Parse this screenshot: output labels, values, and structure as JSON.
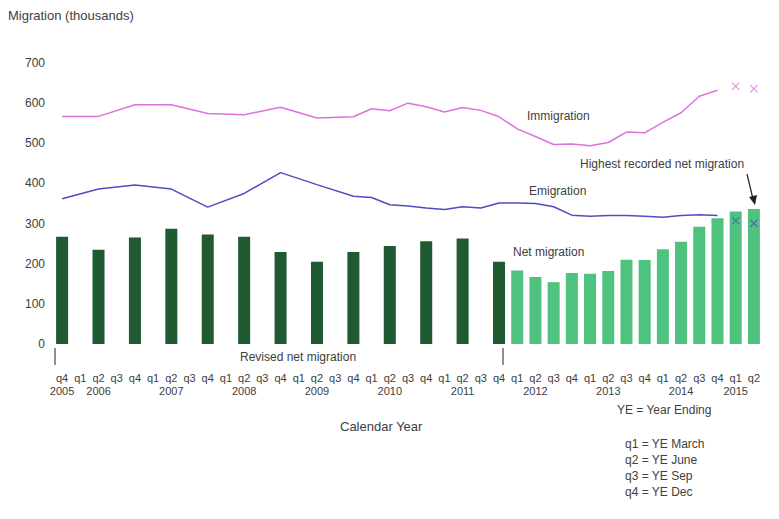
{
  "chart_data": {
    "type": "bar",
    "y_label": "Migration (thousands)",
    "x_label": "Calendar Year",
    "categories": [
      "q4\n2005",
      "q1",
      "q2\n2006",
      "q3",
      "q4",
      "q1",
      "q2\n2007",
      "q3",
      "q4",
      "q1",
      "q2\n2008",
      "q3",
      "q4",
      "q1",
      "q2\n2009",
      "q3",
      "q4",
      "q1",
      "q2\n2010",
      "q3",
      "q4",
      "q1",
      "q2\n2011",
      "q3",
      "q4",
      "q1",
      "q2\n2012",
      "q3",
      "q4",
      "q1",
      "q2\n2013",
      "q3",
      "q4",
      "q1",
      "q2\n2014",
      "q3",
      "q4",
      "q1\n2015",
      "q2"
    ],
    "ylim": [
      0,
      700
    ],
    "yticks": [
      0,
      100,
      200,
      300,
      400,
      500,
      600,
      700
    ],
    "grid": false,
    "series": [
      {
        "name": "Revised net migration",
        "type": "bar",
        "color": "#1f5a33",
        "values": [
          267,
          null,
          235,
          null,
          265,
          null,
          287,
          null,
          273,
          null,
          267,
          null,
          229,
          null,
          205,
          null,
          229,
          null,
          244,
          null,
          256,
          null,
          263,
          null,
          205,
          null,
          null,
          null,
          null,
          null,
          null,
          null,
          null,
          null,
          null,
          null,
          null,
          null,
          null
        ]
      },
      {
        "name": "Net migration",
        "type": "bar",
        "color": "#4ec27e",
        "values": [
          null,
          null,
          null,
          null,
          null,
          null,
          null,
          null,
          null,
          null,
          null,
          null,
          null,
          null,
          null,
          null,
          null,
          null,
          null,
          null,
          null,
          null,
          null,
          null,
          null,
          183,
          167,
          154,
          177,
          175,
          182,
          210,
          209,
          236,
          255,
          292,
          313,
          330,
          336
        ]
      },
      {
        "name": "Immigration",
        "type": "line",
        "color": "#dd72dd",
        "line_style": "solid",
        "values": [
          567,
          null,
          567,
          null,
          596,
          null,
          596,
          null,
          574,
          null,
          571,
          null,
          590,
          null,
          563,
          null,
          566,
          586,
          581,
          600,
          591,
          578,
          589,
          582,
          566,
          536,
          517,
          497,
          498,
          494,
          502,
          528,
          526,
          552,
          576,
          617,
          632,
          null,
          null
        ]
      },
      {
        "name": "Emigration",
        "type": "line",
        "color": "#4d4dc4",
        "line_style": "solid",
        "values": [
          362,
          null,
          386,
          null,
          396,
          null,
          386,
          null,
          341,
          null,
          375,
          null,
          427,
          null,
          397,
          null,
          368,
          365,
          347,
          344,
          339,
          335,
          342,
          339,
          351,
          351,
          350,
          342,
          321,
          318,
          320,
          320,
          318,
          316,
          320,
          322,
          320,
          null,
          null
        ]
      },
      {
        "type": "scatter",
        "color": "#dd72dd",
        "marker": "x",
        "values": [
          null,
          null,
          null,
          null,
          null,
          null,
          null,
          null,
          null,
          null,
          null,
          null,
          null,
          null,
          null,
          null,
          null,
          null,
          null,
          null,
          null,
          null,
          null,
          null,
          null,
          null,
          null,
          null,
          null,
          null,
          null,
          null,
          null,
          null,
          null,
          null,
          null,
          642,
          636
        ]
      },
      {
        "type": "scatter",
        "color": "#4d4dc4",
        "marker": "x",
        "values": [
          null,
          null,
          null,
          null,
          null,
          null,
          null,
          null,
          null,
          null,
          null,
          null,
          null,
          null,
          null,
          null,
          null,
          null,
          null,
          null,
          null,
          null,
          null,
          null,
          null,
          null,
          null,
          null,
          null,
          null,
          null,
          null,
          null,
          null,
          null,
          null,
          null,
          307,
          301
        ]
      }
    ],
    "annotations": [
      "Highest recorded net migration",
      "YE = Year Ending",
      "q1 = YE March",
      "q2 = YE June",
      "q3 = YE Sep",
      "q4 = YE Dec"
    ]
  }
}
